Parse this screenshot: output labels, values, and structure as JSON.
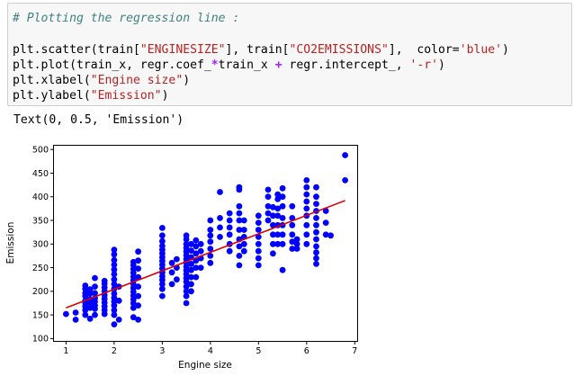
{
  "code_cell": {
    "comment": "# Plotting the regression line :",
    "line1": {
      "a": "plt.scatter(train[",
      "s1": "\"ENGINESIZE\"",
      "b": "], train[",
      "s2": "\"CO2EMISSIONS\"",
      "c": "],  color=",
      "s3": "'blue'",
      "d": ")"
    },
    "line2": {
      "a": "plt.plot(train_x, regr.coef_",
      "op1": "*",
      "b": "train_x ",
      "op2": "+",
      "c": " regr.intercept_, ",
      "s1": "'-r'",
      "d": ")"
    },
    "line3": {
      "a": "plt.xlabel(",
      "s1": "\"Engine size\"",
      "b": ")"
    },
    "line4": {
      "a": "plt.ylabel(",
      "s1": "\"Emission\"",
      "b": ")"
    }
  },
  "output": {
    "text": "Text(0, 0.5, 'Emission')"
  },
  "colors": {
    "points": "#0000ff",
    "regression_line": "#dd0000",
    "code_background": "#f7f7f7",
    "comment": "#408080",
    "string": "#ba2121",
    "operator": "#aa22ff"
  },
  "chart_data": {
    "type": "scatter",
    "xlabel": "Engine size",
    "ylabel": "Emission",
    "title": "",
    "xlim": [
      0.75,
      7.05
    ],
    "ylim": [
      95,
      508
    ],
    "xticks": [
      1,
      2,
      3,
      4,
      5,
      6,
      7
    ],
    "yticks": [
      100,
      150,
      200,
      250,
      300,
      350,
      400,
      450,
      500
    ],
    "grid": false,
    "series": [
      {
        "kind": "scatter",
        "color": "blue",
        "points": [
          [
            1.0,
            152
          ],
          [
            1.2,
            140
          ],
          [
            1.2,
            155
          ],
          [
            1.4,
            150
          ],
          [
            1.4,
            160
          ],
          [
            1.4,
            168
          ],
          [
            1.4,
            175
          ],
          [
            1.4,
            180
          ],
          [
            1.4,
            190
          ],
          [
            1.4,
            196
          ],
          [
            1.4,
            205
          ],
          [
            1.4,
            212
          ],
          [
            1.5,
            142
          ],
          [
            1.5,
            165
          ],
          [
            1.5,
            176
          ],
          [
            1.5,
            183
          ],
          [
            1.5,
            195
          ],
          [
            1.5,
            204
          ],
          [
            1.6,
            150
          ],
          [
            1.6,
            163
          ],
          [
            1.6,
            170
          ],
          [
            1.6,
            178
          ],
          [
            1.6,
            185
          ],
          [
            1.6,
            196
          ],
          [
            1.6,
            210
          ],
          [
            1.6,
            228
          ],
          [
            1.8,
            152
          ],
          [
            1.8,
            160
          ],
          [
            1.8,
            168
          ],
          [
            1.8,
            176
          ],
          [
            1.8,
            184
          ],
          [
            1.8,
            192
          ],
          [
            1.8,
            200
          ],
          [
            1.8,
            208
          ],
          [
            1.8,
            216
          ],
          [
            1.8,
            222
          ],
          [
            2.0,
            130
          ],
          [
            2.0,
            150
          ],
          [
            2.0,
            160
          ],
          [
            2.0,
            170
          ],
          [
            2.0,
            178
          ],
          [
            2.0,
            186
          ],
          [
            2.0,
            195
          ],
          [
            2.0,
            205
          ],
          [
            2.0,
            215
          ],
          [
            2.0,
            225
          ],
          [
            2.0,
            236
          ],
          [
            2.0,
            246
          ],
          [
            2.0,
            256
          ],
          [
            2.0,
            266
          ],
          [
            2.0,
            278
          ],
          [
            2.0,
            288
          ],
          [
            2.1,
            140
          ],
          [
            2.1,
            180
          ],
          [
            2.1,
            210
          ],
          [
            2.4,
            145
          ],
          [
            2.4,
            165
          ],
          [
            2.4,
            175
          ],
          [
            2.4,
            183
          ],
          [
            2.4,
            191
          ],
          [
            2.4,
            199
          ],
          [
            2.4,
            207
          ],
          [
            2.4,
            215
          ],
          [
            2.4,
            223
          ],
          [
            2.4,
            231
          ],
          [
            2.4,
            239
          ],
          [
            2.4,
            247
          ],
          [
            2.4,
            255
          ],
          [
            2.4,
            262
          ],
          [
            2.5,
            140
          ],
          [
            2.5,
            170
          ],
          [
            2.5,
            190
          ],
          [
            2.5,
            210
          ],
          [
            2.5,
            230
          ],
          [
            2.5,
            248
          ],
          [
            2.5,
            265
          ],
          [
            2.5,
            284
          ],
          [
            3.0,
            190
          ],
          [
            3.0,
            205
          ],
          [
            3.0,
            215
          ],
          [
            3.0,
            224
          ],
          [
            3.0,
            232
          ],
          [
            3.0,
            240
          ],
          [
            3.0,
            248
          ],
          [
            3.0,
            256
          ],
          [
            3.0,
            264
          ],
          [
            3.0,
            272
          ],
          [
            3.0,
            280
          ],
          [
            3.0,
            288
          ],
          [
            3.0,
            296
          ],
          [
            3.0,
            306
          ],
          [
            3.0,
            318
          ],
          [
            3.0,
            334
          ],
          [
            3.2,
            215
          ],
          [
            3.2,
            240
          ],
          [
            3.2,
            260
          ],
          [
            3.3,
            225
          ],
          [
            3.3,
            250
          ],
          [
            3.3,
            268
          ],
          [
            3.5,
            175
          ],
          [
            3.5,
            190
          ],
          [
            3.5,
            200
          ],
          [
            3.5,
            210
          ],
          [
            3.5,
            220
          ],
          [
            3.5,
            228
          ],
          [
            3.5,
            236
          ],
          [
            3.5,
            244
          ],
          [
            3.5,
            252
          ],
          [
            3.5,
            260
          ],
          [
            3.5,
            268
          ],
          [
            3.5,
            276
          ],
          [
            3.5,
            284
          ],
          [
            3.5,
            292
          ],
          [
            3.5,
            300
          ],
          [
            3.5,
            310
          ],
          [
            3.5,
            318
          ],
          [
            3.6,
            200
          ],
          [
            3.6,
            215
          ],
          [
            3.6,
            230
          ],
          [
            3.6,
            245
          ],
          [
            3.6,
            258
          ],
          [
            3.6,
            272
          ],
          [
            3.6,
            286
          ],
          [
            3.6,
            300
          ],
          [
            3.7,
            230
          ],
          [
            3.7,
            250
          ],
          [
            3.7,
            265
          ],
          [
            3.7,
            280
          ],
          [
            3.7,
            295
          ],
          [
            3.7,
            308
          ],
          [
            3.8,
            250
          ],
          [
            3.8,
            270
          ],
          [
            3.8,
            285
          ],
          [
            3.8,
            300
          ],
          [
            4.0,
            260
          ],
          [
            4.0,
            275
          ],
          [
            4.0,
            290
          ],
          [
            4.0,
            305
          ],
          [
            4.0,
            318
          ],
          [
            4.0,
            330
          ],
          [
            4.0,
            350
          ],
          [
            4.2,
            315
          ],
          [
            4.2,
            335
          ],
          [
            4.2,
            355
          ],
          [
            4.2,
            410
          ],
          [
            4.4,
            285
          ],
          [
            4.4,
            300
          ],
          [
            4.4,
            320
          ],
          [
            4.4,
            335
          ],
          [
            4.4,
            350
          ],
          [
            4.4,
            365
          ],
          [
            4.6,
            255
          ],
          [
            4.6,
            275
          ],
          [
            4.6,
            295
          ],
          [
            4.6,
            310
          ],
          [
            4.6,
            330
          ],
          [
            4.6,
            350
          ],
          [
            4.6,
            365
          ],
          [
            4.6,
            380
          ],
          [
            4.6,
            415
          ],
          [
            4.6,
            420
          ],
          [
            4.7,
            285
          ],
          [
            4.7,
            300
          ],
          [
            4.7,
            315
          ],
          [
            4.7,
            330
          ],
          [
            4.7,
            350
          ],
          [
            5.0,
            255
          ],
          [
            5.0,
            270
          ],
          [
            5.0,
            285
          ],
          [
            5.0,
            300
          ],
          [
            5.0,
            315
          ],
          [
            5.0,
            330
          ],
          [
            5.0,
            345
          ],
          [
            5.0,
            360
          ],
          [
            5.2,
            350
          ],
          [
            5.2,
            365
          ],
          [
            5.2,
            380
          ],
          [
            5.2,
            400
          ],
          [
            5.2,
            415
          ],
          [
            5.3,
            280
          ],
          [
            5.3,
            300
          ],
          [
            5.3,
            320
          ],
          [
            5.3,
            340
          ],
          [
            5.3,
            360
          ],
          [
            5.3,
            378
          ],
          [
            5.4,
            300
          ],
          [
            5.4,
            320
          ],
          [
            5.4,
            340
          ],
          [
            5.4,
            360
          ],
          [
            5.4,
            375
          ],
          [
            5.4,
            395
          ],
          [
            5.4,
            405
          ],
          [
            5.5,
            245
          ],
          [
            5.5,
            300
          ],
          [
            5.5,
            320
          ],
          [
            5.5,
            340
          ],
          [
            5.5,
            355
          ],
          [
            5.5,
            380
          ],
          [
            5.5,
            400
          ],
          [
            5.5,
            418
          ],
          [
            5.7,
            290
          ],
          [
            5.7,
            305
          ],
          [
            5.7,
            320
          ],
          [
            5.7,
            340
          ],
          [
            5.7,
            355
          ],
          [
            5.7,
            380
          ],
          [
            5.8,
            290
          ],
          [
            5.8,
            300
          ],
          [
            5.8,
            310
          ],
          [
            6.0,
            300
          ],
          [
            6.0,
            320
          ],
          [
            6.0,
            340
          ],
          [
            6.0,
            360
          ],
          [
            6.0,
            375
          ],
          [
            6.0,
            390
          ],
          [
            6.0,
            405
          ],
          [
            6.0,
            420
          ],
          [
            6.0,
            435
          ],
          [
            6.2,
            258
          ],
          [
            6.2,
            270
          ],
          [
            6.2,
            282
          ],
          [
            6.2,
            295
          ],
          [
            6.2,
            310
          ],
          [
            6.2,
            325
          ],
          [
            6.2,
            340
          ],
          [
            6.2,
            355
          ],
          [
            6.2,
            370
          ],
          [
            6.2,
            385
          ],
          [
            6.2,
            400
          ],
          [
            6.2,
            420
          ],
          [
            6.4,
            320
          ],
          [
            6.4,
            345
          ],
          [
            6.4,
            370
          ],
          [
            6.5,
            318
          ],
          [
            6.8,
            435
          ],
          [
            6.8,
            488
          ]
        ]
      },
      {
        "kind": "line",
        "color": "red",
        "points": [
          [
            1.0,
            165
          ],
          [
            6.8,
            392
          ]
        ]
      }
    ]
  }
}
